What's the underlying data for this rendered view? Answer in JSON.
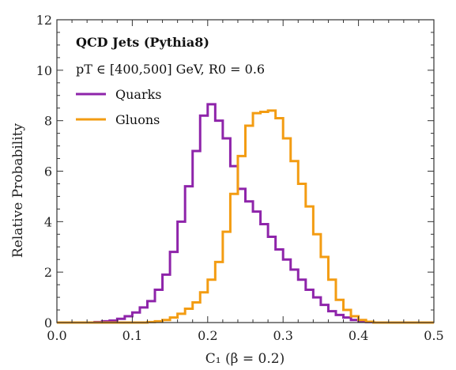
{
  "chart_data": {
    "type": "line",
    "step": true,
    "title": "",
    "xlabel": "C₁ (β = 0.2)",
    "ylabel": "Relative Probability",
    "xlim": [
      0.0,
      0.5
    ],
    "ylim": [
      0,
      12
    ],
    "xticks": [
      0.0,
      0.1,
      0.2,
      0.3,
      0.4,
      0.5
    ],
    "xtick_labels": [
      "0.0",
      "0.1",
      "0.2",
      "0.3",
      "0.4",
      "0.5"
    ],
    "yticks": [
      0,
      2,
      4,
      6,
      8,
      10,
      12
    ],
    "ytick_labels": [
      "0",
      "2",
      "4",
      "6",
      "8",
      "10",
      "12"
    ],
    "grid": false,
    "legend_position": "top-left",
    "annotations": {
      "heading": "QCD Jets (Pythia8)",
      "kinematics": "pT ∈ [400,500] GeV, R0 = 0.6"
    },
    "bin_edges": [
      0.0,
      0.01,
      0.02,
      0.03,
      0.04,
      0.05,
      0.06,
      0.07,
      0.08,
      0.09,
      0.1,
      0.11,
      0.12,
      0.13,
      0.14,
      0.15,
      0.16,
      0.17,
      0.18,
      0.19,
      0.2,
      0.21,
      0.22,
      0.23,
      0.24,
      0.25,
      0.26,
      0.27,
      0.28,
      0.29,
      0.3,
      0.31,
      0.32,
      0.33,
      0.34,
      0.35,
      0.36,
      0.37,
      0.38,
      0.39,
      0.4,
      0.41,
      0.42,
      0.43,
      0.44,
      0.45,
      0.46,
      0.47,
      0.48,
      0.49,
      0.5
    ],
    "series": [
      {
        "name": "Quarks",
        "color": "#8e24aa",
        "values": [
          0,
          0,
          0,
          0,
          0,
          0.02,
          0.05,
          0.08,
          0.15,
          0.25,
          0.4,
          0.6,
          0.85,
          1.3,
          1.9,
          2.8,
          4.0,
          5.4,
          6.8,
          8.2,
          8.65,
          8.0,
          7.3,
          6.2,
          5.3,
          4.8,
          4.4,
          3.9,
          3.4,
          2.9,
          2.5,
          2.1,
          1.7,
          1.3,
          1.0,
          0.7,
          0.45,
          0.3,
          0.2,
          0.1,
          0.05,
          0.02,
          0,
          0,
          0,
          0,
          0,
          0,
          0,
          0
        ]
      },
      {
        "name": "Gluons",
        "color": "#f39c12",
        "values": [
          0,
          0,
          0,
          0,
          0,
          0,
          0,
          0,
          0,
          0,
          0,
          0,
          0.02,
          0.05,
          0.1,
          0.2,
          0.35,
          0.55,
          0.8,
          1.2,
          1.7,
          2.4,
          3.6,
          5.1,
          6.6,
          7.8,
          8.3,
          8.35,
          8.4,
          8.1,
          7.3,
          6.4,
          5.5,
          4.6,
          3.5,
          2.6,
          1.7,
          0.9,
          0.5,
          0.25,
          0.1,
          0.03,
          0,
          0,
          0,
          0,
          0,
          0,
          0,
          0
        ]
      }
    ]
  }
}
